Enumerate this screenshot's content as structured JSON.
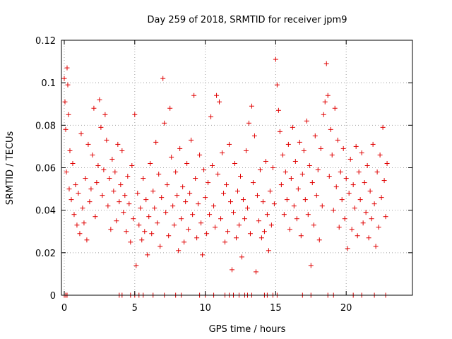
{
  "chart_data": {
    "type": "scatter",
    "title": "Day 259 of 2018, SRMTID for receiver jpm9",
    "xlabel": "GPS time / hours",
    "ylabel": "SRMTID / TECUs",
    "xlim": [
      -0.2,
      24.7
    ],
    "ylim": [
      0,
      0.12
    ],
    "xticks": [
      0,
      5,
      10,
      15,
      20
    ],
    "xtick_labels": [
      "0",
      "5",
      "10",
      "15",
      "20"
    ],
    "yticks": [
      0,
      0.02,
      0.04,
      0.06,
      0.08,
      0.1,
      0.12
    ],
    "ytick_labels": [
      "0",
      "0.02",
      "0.04",
      "0.06",
      "0.08",
      "0.1",
      "0.12"
    ],
    "grid": true,
    "marker": "+",
    "series": [
      {
        "name": "SRMTID",
        "color": "#e00000",
        "points": [
          [
            0.0,
            0.102
          ],
          [
            0.05,
            0.091
          ],
          [
            0.1,
            0.078
          ],
          [
            0.15,
            0.058
          ],
          [
            0.2,
            0.107
          ],
          [
            0.25,
            0.099
          ],
          [
            0.3,
            0.085
          ],
          [
            0.35,
            0.05
          ],
          [
            0.4,
            0.068
          ],
          [
            0.5,
            0.045
          ],
          [
            0.6,
            0.062
          ],
          [
            0.7,
            0.038
          ],
          [
            0.8,
            0.052
          ],
          [
            0.9,
            0.033
          ],
          [
            1.0,
            0.048
          ],
          [
            1.1,
            0.029
          ],
          [
            1.2,
            0.076
          ],
          [
            1.3,
            0.041
          ],
          [
            1.4,
            0.034
          ],
          [
            1.5,
            0.055
          ],
          [
            1.6,
            0.026
          ],
          [
            1.7,
            0.071
          ],
          [
            1.8,
            0.044
          ],
          [
            1.9,
            0.05
          ],
          [
            2.0,
            0.066
          ],
          [
            2.1,
            0.088
          ],
          [
            2.2,
            0.037
          ],
          [
            2.3,
            0.053
          ],
          [
            2.4,
            0.061
          ],
          [
            2.5,
            0.092
          ],
          [
            2.6,
            0.079
          ],
          [
            2.7,
            0.047
          ],
          [
            2.8,
            0.059
          ],
          [
            2.9,
            0.085
          ],
          [
            3.0,
            0.073
          ],
          [
            3.1,
            0.042
          ],
          [
            3.2,
            0.055
          ],
          [
            3.3,
            0.031
          ],
          [
            3.4,
            0.064
          ],
          [
            3.5,
            0.049
          ],
          [
            3.6,
            0.058
          ],
          [
            3.7,
            0.035
          ],
          [
            3.8,
            0.071
          ],
          [
            3.9,
            0.044
          ],
          [
            4.0,
            0.052
          ],
          [
            4.1,
            0.068
          ],
          [
            4.2,
            0.039
          ],
          [
            4.3,
            0.047
          ],
          [
            4.4,
            0.03
          ],
          [
            4.5,
            0.056
          ],
          [
            4.6,
            0.043
          ],
          [
            4.7,
            0.025
          ],
          [
            4.8,
            0.061
          ],
          [
            4.9,
            0.036
          ],
          [
            5.0,
            0.085
          ],
          [
            5.1,
            0.014
          ],
          [
            5.2,
            0.048
          ],
          [
            5.3,
            0.033
          ],
          [
            5.4,
            0.041
          ],
          [
            5.5,
            0.026
          ],
          [
            5.6,
            0.055
          ],
          [
            5.7,
            0.03
          ],
          [
            5.8,
            0.045
          ],
          [
            5.9,
            0.019
          ],
          [
            6.0,
            0.037
          ],
          [
            6.1,
            0.062
          ],
          [
            6.2,
            0.029
          ],
          [
            6.3,
            0.049
          ],
          [
            6.4,
            0.041
          ],
          [
            6.5,
            0.072
          ],
          [
            6.6,
            0.034
          ],
          [
            6.7,
            0.057
          ],
          [
            6.8,
            0.023
          ],
          [
            6.9,
            0.046
          ],
          [
            7.0,
            0.102
          ],
          [
            7.1,
            0.081
          ],
          [
            7.2,
            0.039
          ],
          [
            7.3,
            0.052
          ],
          [
            7.4,
            0.028
          ],
          [
            7.5,
            0.088
          ],
          [
            7.6,
            0.065
          ],
          [
            7.7,
            0.042
          ],
          [
            7.8,
            0.033
          ],
          [
            7.9,
            0.058
          ],
          [
            8.0,
            0.047
          ],
          [
            8.1,
            0.021
          ],
          [
            8.2,
            0.069
          ],
          [
            8.3,
            0.036
          ],
          [
            8.4,
            0.051
          ],
          [
            8.5,
            0.025
          ],
          [
            8.6,
            0.044
          ],
          [
            8.7,
            0.062
          ],
          [
            8.8,
            0.031
          ],
          [
            8.9,
            0.048
          ],
          [
            9.0,
            0.073
          ],
          [
            9.1,
            0.038
          ],
          [
            9.2,
            0.094
          ],
          [
            9.3,
            0.055
          ],
          [
            9.4,
            0.027
          ],
          [
            9.5,
            0.043
          ],
          [
            9.6,
            0.066
          ],
          [
            9.7,
            0.034
          ],
          [
            9.8,
            0.019
          ],
          [
            9.9,
            0.059
          ],
          [
            10.0,
            0.046
          ],
          [
            10.1,
            0.029
          ],
          [
            10.2,
            0.053
          ],
          [
            10.3,
            0.038
          ],
          [
            10.4,
            0.084
          ],
          [
            10.5,
            0.061
          ],
          [
            10.6,
            0.042
          ],
          [
            10.7,
            0.032
          ],
          [
            10.8,
            0.094
          ],
          [
            10.9,
            0.057
          ],
          [
            11.0,
            0.091
          ],
          [
            11.1,
            0.036
          ],
          [
            11.2,
            0.067
          ],
          [
            11.3,
            0.048
          ],
          [
            11.4,
            0.025
          ],
          [
            11.5,
            0.052
          ],
          [
            11.6,
            0.03
          ],
          [
            11.7,
            0.071
          ],
          [
            11.8,
            0.044
          ],
          [
            11.9,
            0.012
          ],
          [
            12.0,
            0.039
          ],
          [
            12.1,
            0.062
          ],
          [
            12.2,
            0.027
          ],
          [
            12.3,
            0.049
          ],
          [
            12.4,
            0.033
          ],
          [
            12.5,
            0.056
          ],
          [
            12.6,
            0.018
          ],
          [
            12.7,
            0.045
          ],
          [
            12.8,
            0.036
          ],
          [
            12.9,
            0.068
          ],
          [
            13.0,
            0.041
          ],
          [
            13.1,
            0.081
          ],
          [
            13.2,
            0.029
          ],
          [
            13.3,
            0.089
          ],
          [
            13.4,
            0.053
          ],
          [
            13.5,
            0.075
          ],
          [
            13.6,
            0.011
          ],
          [
            13.7,
            0.047
          ],
          [
            13.8,
            0.035
          ],
          [
            13.9,
            0.059
          ],
          [
            14.0,
            0.027
          ],
          [
            14.1,
            0.044
          ],
          [
            14.2,
            0.03
          ],
          [
            14.3,
            0.063
          ],
          [
            14.4,
            0.038
          ],
          [
            14.5,
            0.021
          ],
          [
            14.6,
            0.049
          ],
          [
            14.7,
            0.033
          ],
          [
            14.8,
            0.06
          ],
          [
            14.9,
            0.043
          ],
          [
            15.0,
            0.111
          ],
          [
            15.1,
            0.099
          ],
          [
            15.2,
            0.087
          ],
          [
            15.3,
            0.077
          ],
          [
            15.4,
            0.052
          ],
          [
            15.5,
            0.066
          ],
          [
            15.6,
            0.038
          ],
          [
            15.7,
            0.058
          ],
          [
            15.8,
            0.045
          ],
          [
            15.9,
            0.071
          ],
          [
            16.0,
            0.031
          ],
          [
            16.1,
            0.055
          ],
          [
            16.2,
            0.079
          ],
          [
            16.3,
            0.042
          ],
          [
            16.4,
            0.063
          ],
          [
            16.5,
            0.036
          ],
          [
            16.6,
            0.05
          ],
          [
            16.7,
            0.072
          ],
          [
            16.8,
            0.028
          ],
          [
            16.9,
            0.057
          ],
          [
            17.0,
            0.068
          ],
          [
            17.1,
            0.045
          ],
          [
            17.2,
            0.082
          ],
          [
            17.3,
            0.038
          ],
          [
            17.4,
            0.061
          ],
          [
            17.5,
            0.014
          ],
          [
            17.6,
            0.053
          ],
          [
            17.7,
            0.033
          ],
          [
            17.8,
            0.075
          ],
          [
            17.9,
            0.047
          ],
          [
            18.0,
            0.059
          ],
          [
            18.1,
            0.026
          ],
          [
            18.2,
            0.069
          ],
          [
            18.3,
            0.042
          ],
          [
            18.4,
            0.085
          ],
          [
            18.5,
            0.091
          ],
          [
            18.6,
            0.109
          ],
          [
            18.7,
            0.094
          ],
          [
            18.8,
            0.056
          ],
          [
            18.9,
            0.078
          ],
          [
            19.0,
            0.066
          ],
          [
            19.1,
            0.04
          ],
          [
            19.2,
            0.088
          ],
          [
            19.3,
            0.051
          ],
          [
            19.4,
            0.073
          ],
          [
            19.5,
            0.032
          ],
          [
            19.6,
            0.058
          ],
          [
            19.7,
            0.045
          ],
          [
            19.8,
            0.069
          ],
          [
            19.9,
            0.036
          ],
          [
            20.0,
            0.055
          ],
          [
            20.1,
            0.022
          ],
          [
            20.2,
            0.048
          ],
          [
            20.3,
            0.064
          ],
          [
            20.4,
            0.031
          ],
          [
            20.5,
            0.052
          ],
          [
            20.6,
            0.041
          ],
          [
            20.7,
            0.07
          ],
          [
            20.8,
            0.028
          ],
          [
            20.9,
            0.058
          ],
          [
            21.0,
            0.045
          ],
          [
            21.1,
            0.067
          ],
          [
            21.2,
            0.034
          ],
          [
            21.3,
            0.053
          ],
          [
            21.4,
            0.039
          ],
          [
            21.5,
            0.061
          ],
          [
            21.6,
            0.027
          ],
          [
            21.7,
            0.049
          ],
          [
            21.8,
            0.036
          ],
          [
            21.9,
            0.071
          ],
          [
            22.0,
            0.043
          ],
          [
            22.1,
            0.023
          ],
          [
            22.2,
            0.058
          ],
          [
            22.3,
            0.032
          ],
          [
            22.4,
            0.066
          ],
          [
            22.5,
            0.046
          ],
          [
            22.6,
            0.079
          ],
          [
            22.7,
            0.054
          ],
          [
            22.8,
            0.037
          ],
          [
            22.9,
            0.062
          ]
        ]
      },
      {
        "name": "zero values",
        "color": "#e00000",
        "points": [
          [
            0.0,
            0
          ],
          [
            0.1,
            0
          ],
          [
            0.2,
            0
          ],
          [
            3.9,
            0
          ],
          [
            4.1,
            0
          ],
          [
            4.7,
            0
          ],
          [
            5.0,
            0
          ],
          [
            5.3,
            0
          ],
          [
            5.6,
            0
          ],
          [
            6.3,
            0
          ],
          [
            7.1,
            0
          ],
          [
            7.9,
            0
          ],
          [
            8.3,
            0
          ],
          [
            9.6,
            0
          ],
          [
            10.0,
            0
          ],
          [
            10.6,
            0
          ],
          [
            11.4,
            0
          ],
          [
            11.7,
            0
          ],
          [
            12.0,
            0
          ],
          [
            12.4,
            0
          ],
          [
            12.8,
            0
          ],
          [
            13.0,
            0
          ],
          [
            13.3,
            0
          ],
          [
            14.2,
            0
          ],
          [
            14.4,
            0
          ],
          [
            14.8,
            0
          ],
          [
            15.1,
            0
          ],
          [
            16.9,
            0
          ],
          [
            17.5,
            0
          ],
          [
            18.7,
            0
          ],
          [
            19.1,
            0
          ],
          [
            20.5,
            0
          ],
          [
            21.1,
            0
          ],
          [
            22.0,
            0
          ],
          [
            22.8,
            0
          ]
        ]
      }
    ]
  }
}
